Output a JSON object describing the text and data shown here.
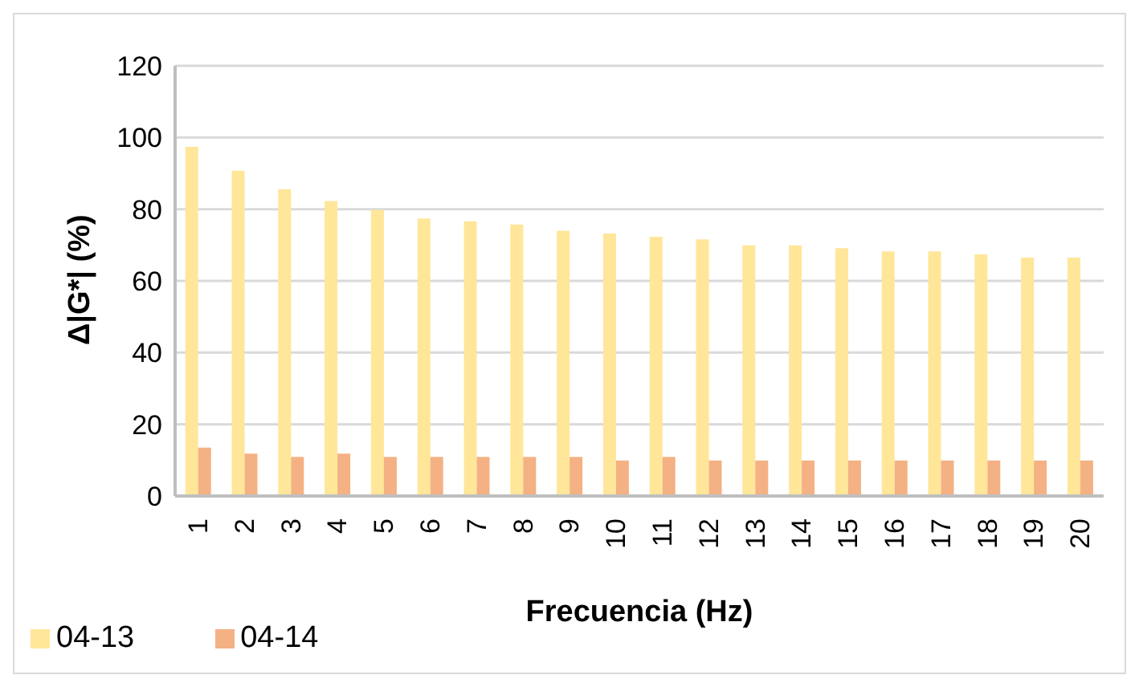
{
  "chart_data": {
    "type": "bar",
    "xlabel": "Frecuencia (Hz)",
    "ylabel": "Δ|G*|  (%)",
    "categories": [
      "1",
      "2",
      "3",
      "4",
      "5",
      "6",
      "7",
      "8",
      "9",
      "10",
      "11",
      "12",
      "13",
      "14",
      "15",
      "16",
      "17",
      "18",
      "19",
      "20"
    ],
    "series": [
      {
        "name": "04-13",
        "color": "#ffe699",
        "values": [
          97.4,
          90.7,
          85.6,
          82.3,
          79.8,
          77.4,
          76.6,
          75.7,
          74,
          73.2,
          72.3,
          71.6,
          69.9,
          69.9,
          69.1,
          68.2,
          68.2,
          67.4,
          66.5,
          66.5
        ]
      },
      {
        "name": "04-14",
        "color": "#f4b183",
        "values": [
          13.5,
          11.8,
          10.9,
          11.8,
          10.9,
          10.9,
          10.9,
          10.9,
          10.9,
          9.9,
          10.9,
          9.9,
          9.9,
          9.9,
          9.9,
          9.9,
          9.9,
          9.9,
          9.9,
          9.9
        ]
      }
    ],
    "ylim": [
      0,
      120
    ],
    "yticks": [
      0,
      20,
      40,
      60,
      80,
      100,
      120
    ],
    "grid": "y",
    "legend": "bottom left"
  }
}
